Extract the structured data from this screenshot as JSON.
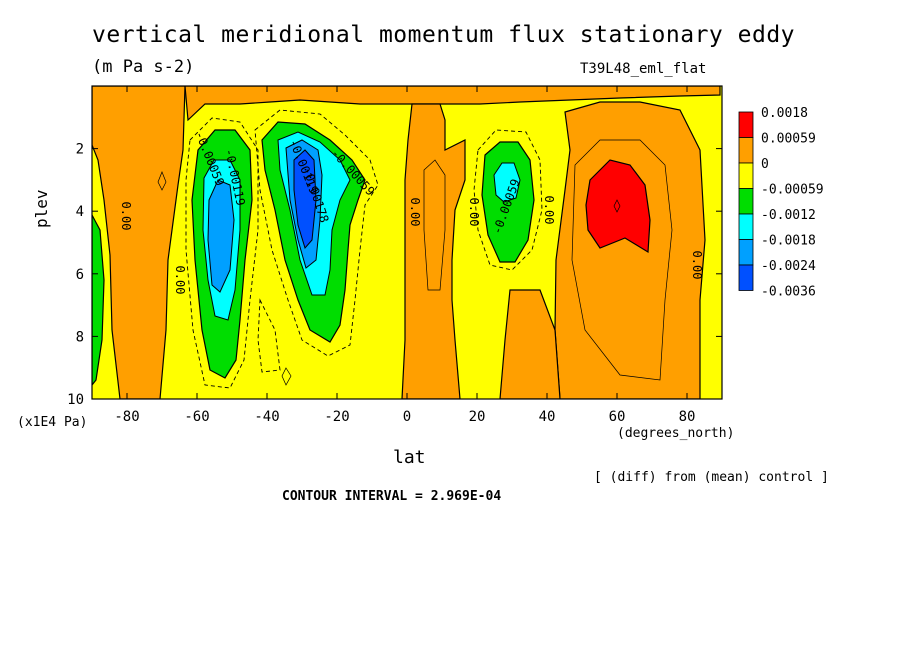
{
  "chart_data": {
    "type": "heatmap",
    "title": "vertical meridional momentum flux stationary eddy",
    "units": "(m Pa s-2)",
    "run_label": "T39L48_eml_flat",
    "xlabel": "lat",
    "x_units": "(degrees_north)",
    "ylabel": "plev",
    "y_units": "(x1E4 Pa)",
    "xlim": [
      -90,
      90
    ],
    "ylim": [
      10,
      0
    ],
    "x_ticks": [
      "-80",
      "-60",
      "-40",
      "-20",
      "0",
      "20",
      "40",
      "60",
      "80"
    ],
    "y_ticks": [
      "2",
      "4",
      "6",
      "8",
      "10"
    ],
    "legend_levels": [
      "0.0018",
      "0.00059",
      "0",
      "-0.00059",
      "-0.0012",
      "-0.0018",
      "-0.0024",
      "-0.0036"
    ],
    "colors": {
      "red": "#ff0000",
      "orange": "#ff9f00",
      "yellow": "#ffff00",
      "green": "#00dd00",
      "cyan": "#00ffff",
      "lightblue": "#00a0ff",
      "blue": "#0050ff"
    },
    "contour_labels": [
      "0.00",
      "0.00",
      "-0.00059",
      "-0.00119",
      "-0.00119",
      "-0.00178",
      "-0.00059",
      "0.00",
      "0.00",
      "-0.00059",
      "0.00",
      "0.00"
    ],
    "note": "[ (diff) from (mean) control ]",
    "contour_interval": "CONTOUR INTERVAL = 2.969E-04"
  }
}
